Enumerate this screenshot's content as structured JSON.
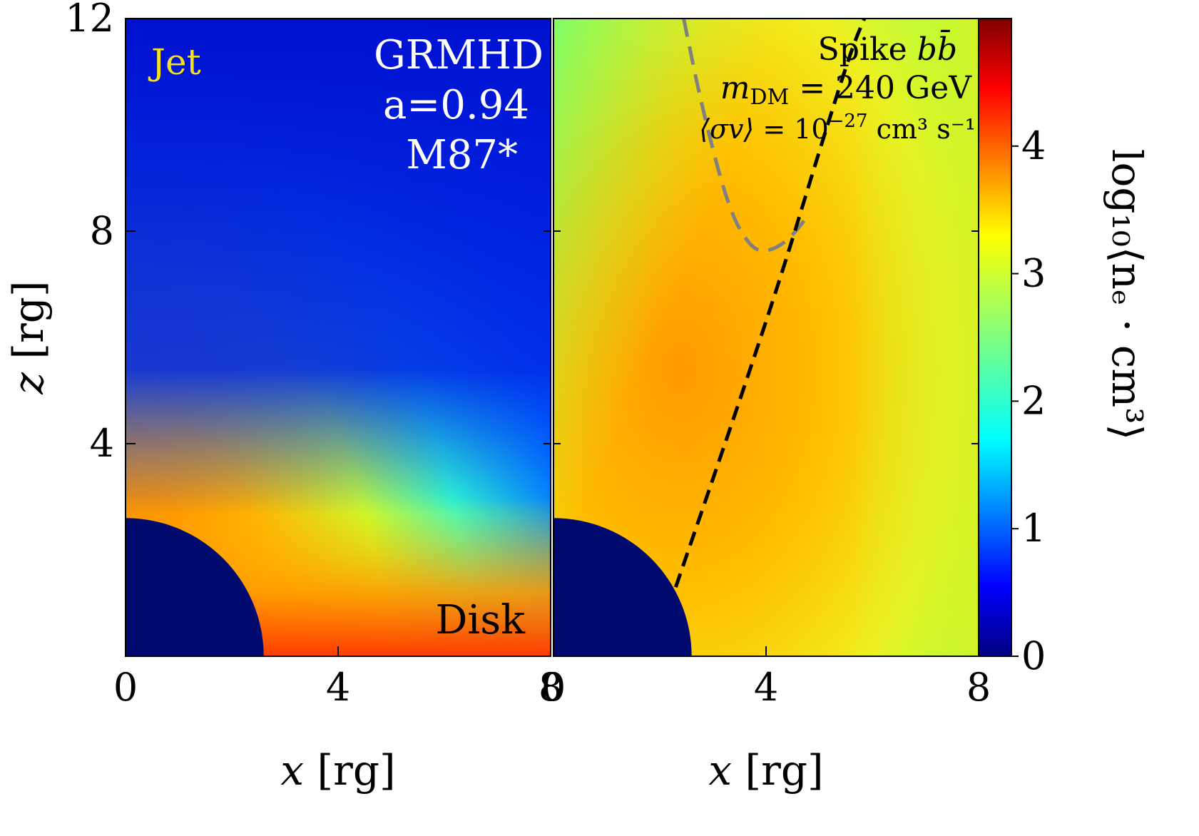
{
  "chart_data": [
    {
      "type": "heatmap",
      "panel": "left",
      "xlabel": {
        "var": "x",
        "unit": "rg"
      },
      "ylabel": {
        "var": "z",
        "unit": "rg"
      },
      "xlim": [
        0,
        8
      ],
      "ylim": [
        0,
        12
      ],
      "xticks": [
        "0",
        "4",
        "8"
      ],
      "yticks": [
        "4",
        "8",
        "12"
      ],
      "annotations": {
        "jet": "Jet",
        "disk": "Disk",
        "model_lines": [
          "GRMHD",
          "a=0.94",
          "M87*"
        ]
      },
      "horizon_radius": 2.6
    },
    {
      "type": "heatmap",
      "panel": "right",
      "xlabel": {
        "var": "x",
        "unit": "rg"
      },
      "xlim": [
        0,
        8
      ],
      "ylim": [
        0,
        12
      ],
      "xticks": [
        "0",
        "4",
        "8"
      ],
      "annotations": {
        "title_lines": [
          {
            "prefix": "Spike ",
            "math": "bb̄"
          },
          {
            "math": "m",
            "sub": "DM",
            "value": " = 240 GeV"
          },
          {
            "math": "⟨σv⟩",
            "value": " = 10",
            "sup": "−27",
            "unit": " cm³ s⁻¹"
          }
        ]
      },
      "horizon_radius": 2.6,
      "curves": [
        {
          "name": "black-dashed",
          "color": "#000000",
          "points": [
            [
              2.3,
              1.3
            ],
            [
              3.4,
              4.5
            ],
            [
              4.3,
              7.2
            ],
            [
              5.0,
              9.5
            ],
            [
              5.6,
              11.4
            ],
            [
              5.85,
              12
            ]
          ]
        },
        {
          "name": "gray-dashed",
          "color": "#808080",
          "points": [
            [
              2.45,
              12
            ],
            [
              2.8,
              10.3
            ],
            [
              3.3,
              8.4
            ],
            [
              3.7,
              7.7
            ],
            [
              4.0,
              7.6
            ],
            [
              4.4,
              7.8
            ],
            [
              4.8,
              8.3
            ]
          ]
        }
      ]
    }
  ],
  "colorbar": {
    "label": "log₁₀⟨nₑ · cm³⟩",
    "range": [
      0,
      5
    ],
    "ticks": [
      "0",
      "1",
      "2",
      "3",
      "4"
    ]
  }
}
